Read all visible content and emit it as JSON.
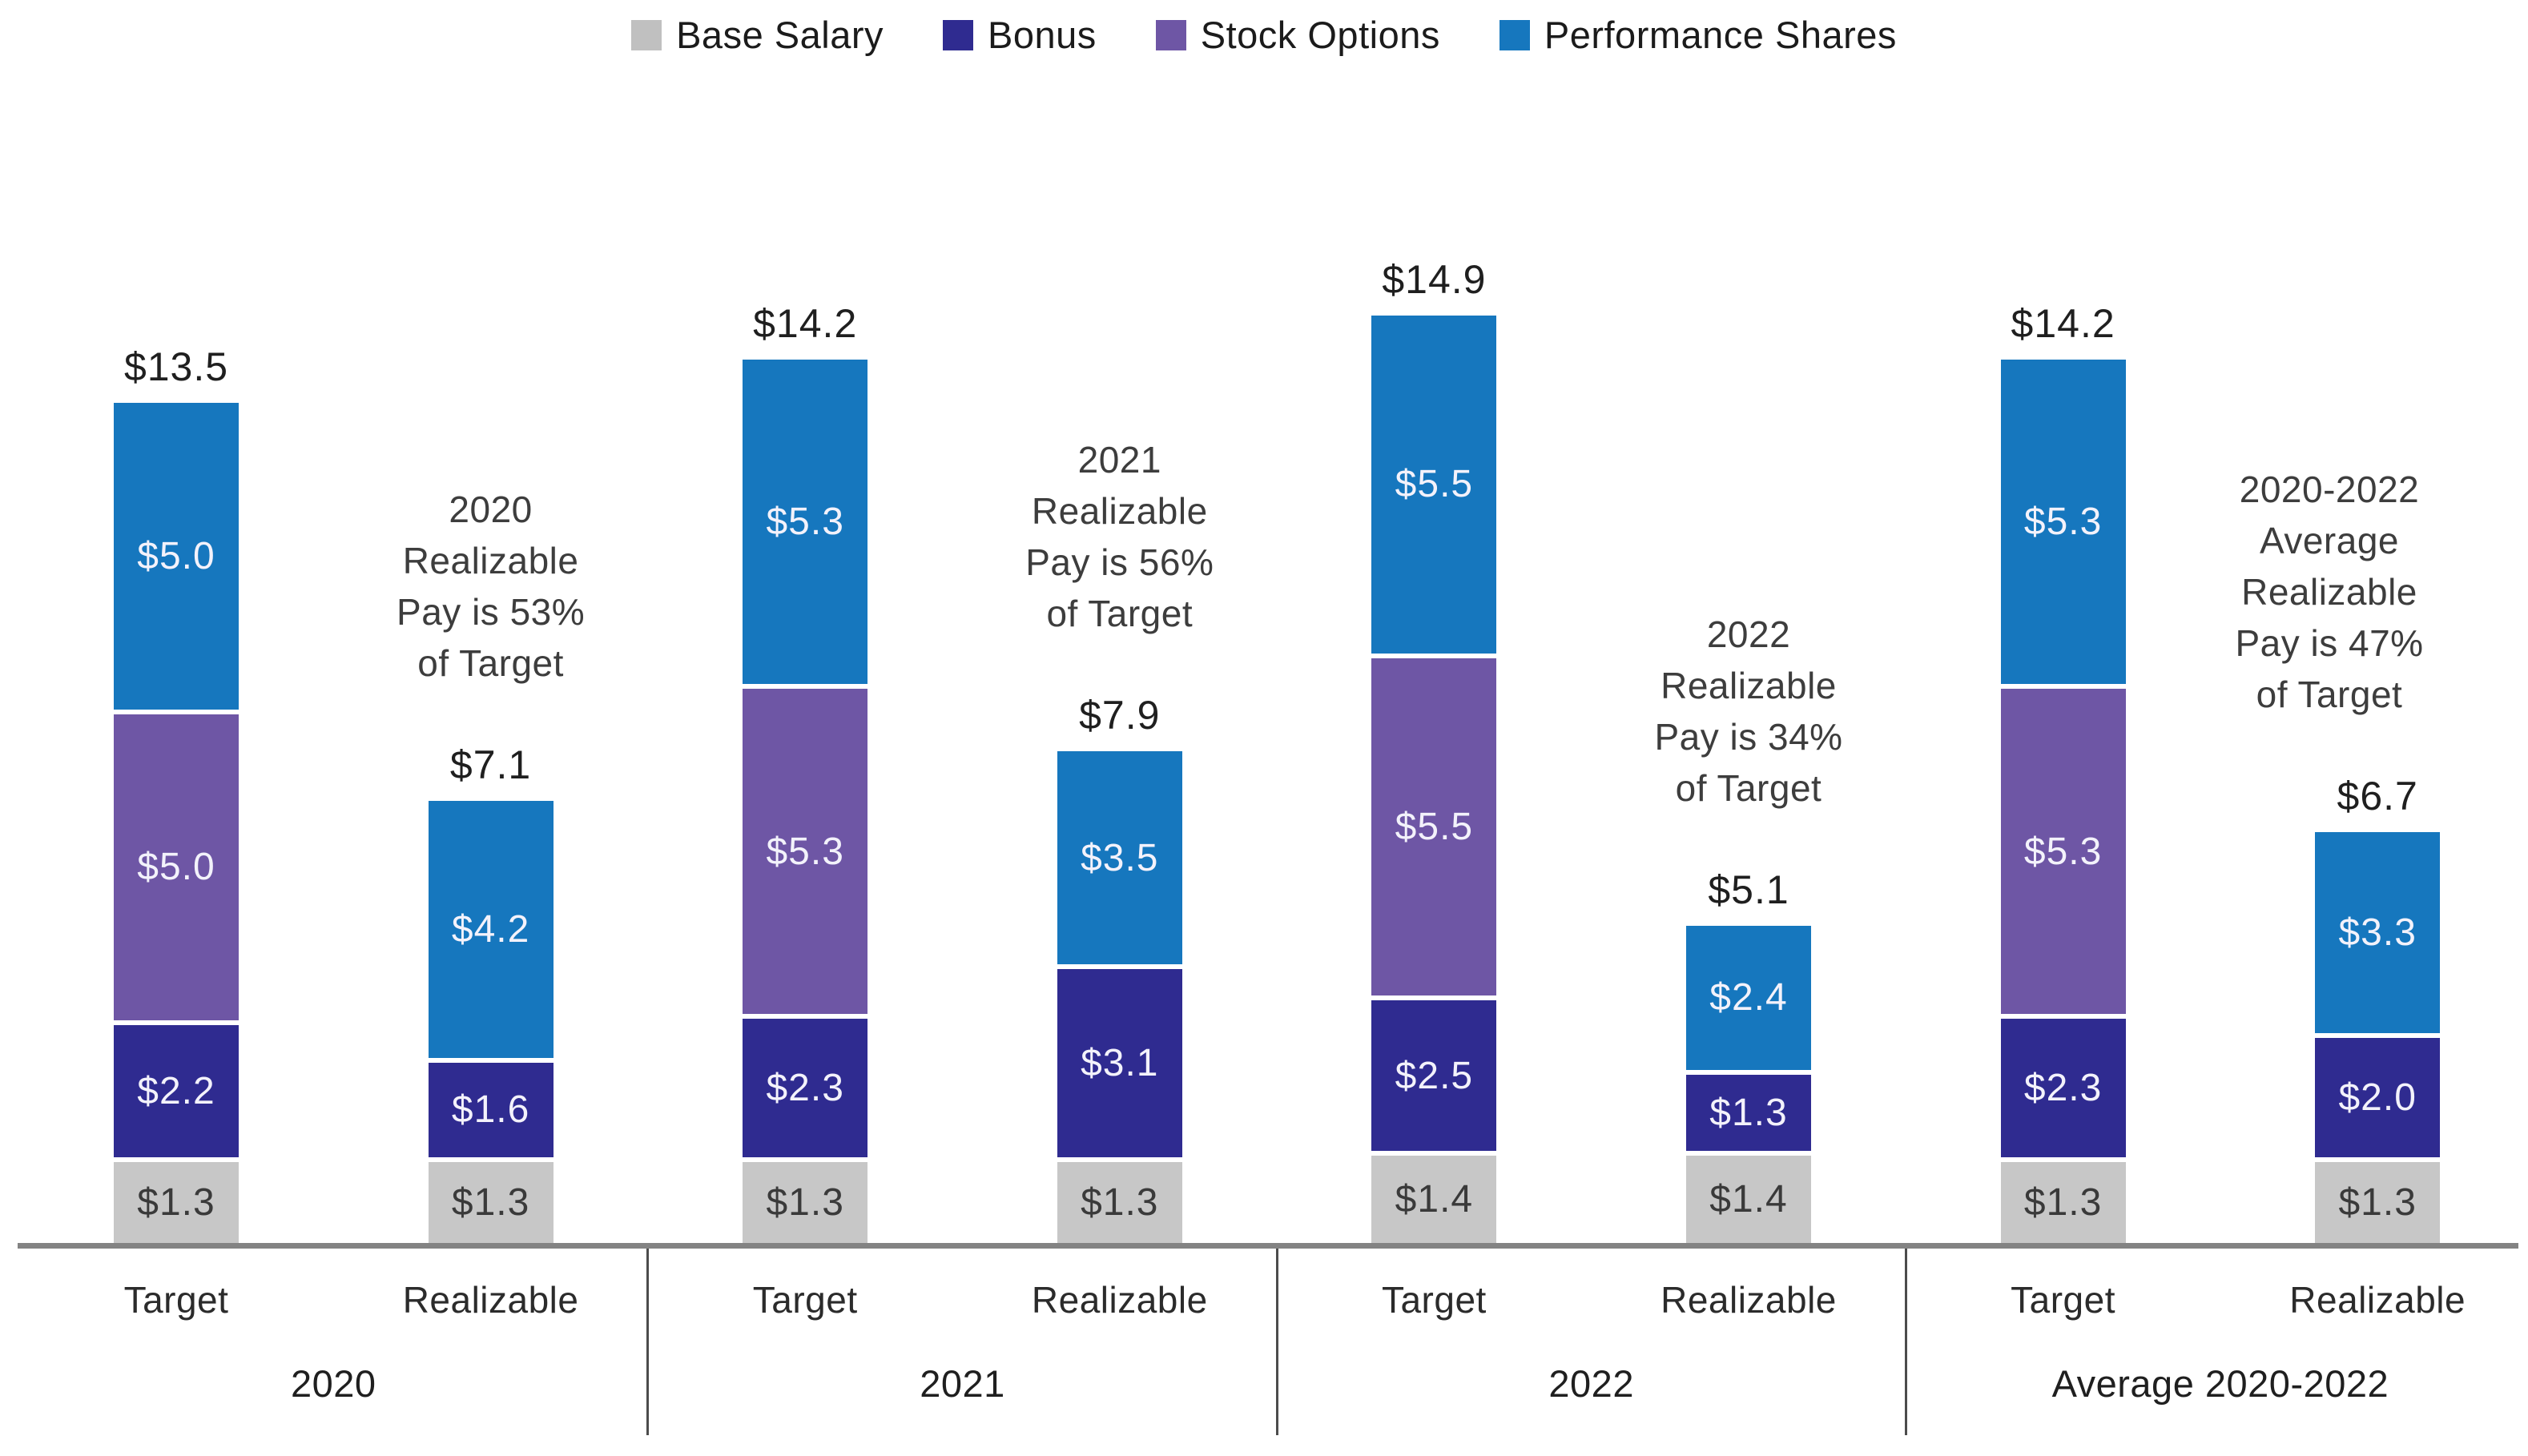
{
  "legend": {
    "items": [
      {
        "label": "Base Salary",
        "color": "#c0c0c0"
      },
      {
        "label": "Bonus",
        "color": "#2f2b90"
      },
      {
        "label": "Stock Options",
        "color": "#6e56a5"
      },
      {
        "label": "Performance Shares",
        "color": "#1677be"
      }
    ]
  },
  "chart_data": {
    "type": "bar",
    "stacked": true,
    "units": "USD millions",
    "value_prefix": "$",
    "legend_position": "top",
    "grid": false,
    "ylim": [
      0,
      15.5
    ],
    "series": [
      "Base Salary",
      "Bonus",
      "Stock Options",
      "Performance Shares"
    ],
    "series_colors": {
      "Base Salary": "#c7c7c7",
      "Bonus": "#2f2b90",
      "Stock Options": "#6e56a5",
      "Performance Shares": "#1677be"
    },
    "groups": [
      {
        "label": "2020",
        "bars": [
          {
            "label": "Target",
            "total": 13.5,
            "total_label": "$13.5",
            "segments": [
              {
                "series": "Base Salary",
                "value": 1.3,
                "label": "$1.3"
              },
              {
                "series": "Bonus",
                "value": 2.2,
                "label": "$2.2"
              },
              {
                "series": "Stock Options",
                "value": 5.0,
                "label": "$5.0"
              },
              {
                "series": "Performance Shares",
                "value": 5.0,
                "label": "$5.0"
              }
            ]
          },
          {
            "label": "Realizable",
            "total": 7.1,
            "total_label": "$7.1",
            "annotation_lines": [
              "2020",
              "Realizable",
              "Pay is 53%",
              "of Target"
            ],
            "segments": [
              {
                "series": "Base Salary",
                "value": 1.3,
                "label": "$1.3"
              },
              {
                "series": "Bonus",
                "value": 1.6,
                "label": "$1.6"
              },
              {
                "series": "Performance Shares",
                "value": 4.2,
                "label": "$4.2"
              }
            ]
          }
        ]
      },
      {
        "label": "2021",
        "bars": [
          {
            "label": "Target",
            "total": 14.2,
            "total_label": "$14.2",
            "segments": [
              {
                "series": "Base Salary",
                "value": 1.3,
                "label": "$1.3"
              },
              {
                "series": "Bonus",
                "value": 2.3,
                "label": "$2.3"
              },
              {
                "series": "Stock Options",
                "value": 5.3,
                "label": "$5.3"
              },
              {
                "series": "Performance Shares",
                "value": 5.3,
                "label": "$5.3"
              }
            ]
          },
          {
            "label": "Realizable",
            "total": 7.9,
            "total_label": "$7.9",
            "annotation_lines": [
              "2021",
              "Realizable",
              "Pay is 56%",
              "of Target"
            ],
            "segments": [
              {
                "series": "Base Salary",
                "value": 1.3,
                "label": "$1.3"
              },
              {
                "series": "Bonus",
                "value": 3.1,
                "label": "$3.1"
              },
              {
                "series": "Performance Shares",
                "value": 3.5,
                "label": "$3.5"
              }
            ]
          }
        ]
      },
      {
        "label": "2022",
        "bars": [
          {
            "label": "Target",
            "total": 14.9,
            "total_label": "$14.9",
            "segments": [
              {
                "series": "Base Salary",
                "value": 1.4,
                "label": "$1.4"
              },
              {
                "series": "Bonus",
                "value": 2.5,
                "label": "$2.5"
              },
              {
                "series": "Stock Options",
                "value": 5.5,
                "label": "$5.5"
              },
              {
                "series": "Performance Shares",
                "value": 5.5,
                "label": "$5.5"
              }
            ]
          },
          {
            "label": "Realizable",
            "total": 5.1,
            "total_label": "$5.1",
            "annotation_lines": [
              "2022",
              "Realizable",
              "Pay is 34%",
              "of Target"
            ],
            "segments": [
              {
                "series": "Base Salary",
                "value": 1.4,
                "label": "$1.4"
              },
              {
                "series": "Bonus",
                "value": 1.3,
                "label": "$1.3"
              },
              {
                "series": "Performance Shares",
                "value": 2.4,
                "label": "$2.4"
              }
            ]
          }
        ]
      },
      {
        "label": "Average 2020-2022",
        "bars": [
          {
            "label": "Target",
            "total": 14.2,
            "total_label": "$14.2",
            "segments": [
              {
                "series": "Base Salary",
                "value": 1.3,
                "label": "$1.3"
              },
              {
                "series": "Bonus",
                "value": 2.3,
                "label": "$2.3"
              },
              {
                "series": "Stock Options",
                "value": 5.3,
                "label": "$5.3"
              },
              {
                "series": "Performance Shares",
                "value": 5.3,
                "label": "$5.3"
              }
            ]
          },
          {
            "label": "Realizable",
            "total": 6.7,
            "total_label": "$6.7",
            "annotation_lines": [
              "2020-2022",
              "Average",
              "Realizable",
              "Pay is 47%",
              "of Target"
            ],
            "segments": [
              {
                "series": "Base Salary",
                "value": 1.3,
                "label": "$1.3"
              },
              {
                "series": "Bonus",
                "value": 2.0,
                "label": "$2.0"
              },
              {
                "series": "Performance Shares",
                "value": 3.3,
                "label": "$3.3"
              }
            ]
          }
        ]
      }
    ]
  },
  "colors": {
    "background": "#ffffff",
    "axis_line": "#838383",
    "divider": "#4c4c4c",
    "segment_label_light": "#f3f2fb",
    "segment_label_dark": "#3a3a3a",
    "total_label": "#1f1f1f",
    "annotation_text": "#3d3d3d",
    "axis_label_text": "#2b2b2b"
  }
}
